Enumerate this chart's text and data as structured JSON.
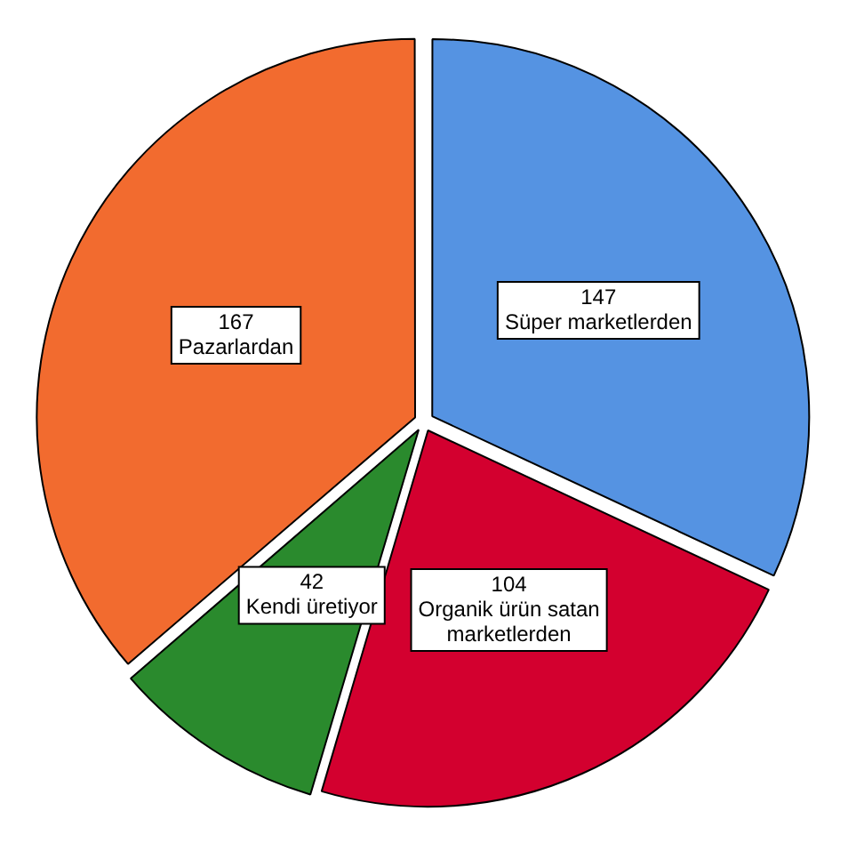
{
  "chart_data": {
    "type": "pie",
    "categories": [
      "Süper marketlerden",
      "Organik ürün satan marketlerden",
      "Kendi üretiyor",
      "Pazarlardan"
    ],
    "values": [
      147,
      104,
      42,
      167
    ],
    "colors": [
      "#5593e2",
      "#d3002f",
      "#2a8a2d",
      "#f26b2f"
    ],
    "data_labels": true,
    "legend": false
  }
}
